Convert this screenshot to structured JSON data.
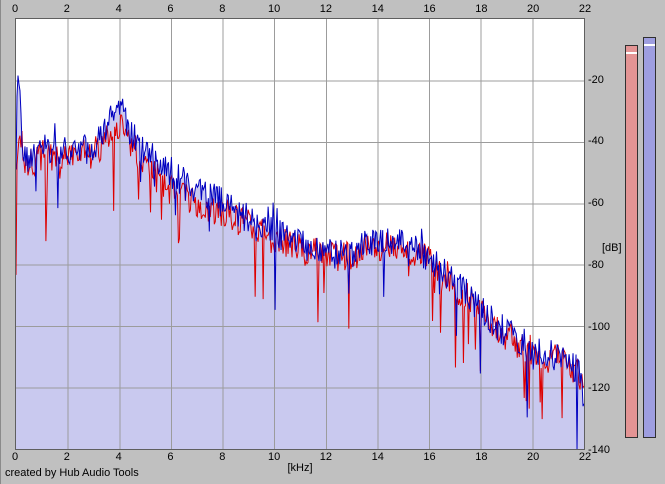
{
  "footer": "created by Hub Audio Tools",
  "meters": {
    "left": {
      "fill": "#e39494",
      "border": "#303030"
    },
    "right": {
      "fill": "#9e9ee0",
      "border": "#303030"
    }
  },
  "chart_data": {
    "type": "line",
    "title": "",
    "xlabel": "[kHz]",
    "ylabel": "[dB]",
    "x_range": [
      0,
      22
    ],
    "y_range": [
      -140,
      0
    ],
    "x_ticks": [
      0,
      2,
      4,
      6,
      8,
      10,
      12,
      14,
      16,
      18,
      20,
      22
    ],
    "y_ticks": [
      -20,
      -40,
      -60,
      -80,
      -100,
      -120,
      -140
    ],
    "grid": true,
    "legend": "none",
    "colors": {
      "plot_background": "#ffffff",
      "window_background": "#c0c0c0",
      "grid": "#9c9c9c",
      "area_fill": "#c9c9ef",
      "red_trace": "#dd0000",
      "blue_trace": "#0000c0"
    },
    "series": [
      {
        "name": "red-trace",
        "color": "#dd0000",
        "fill": null,
        "noise": {
          "seed": 7,
          "jitter": 5,
          "spike_prob": 0.07,
          "spike_depth": 24,
          "up_prob": 0.02,
          "up_amp": 6
        },
        "points": [
          [
            0,
            -55
          ],
          [
            0.1,
            -36
          ],
          [
            0.35,
            -46
          ],
          [
            0.7,
            -47
          ],
          [
            1,
            -44
          ],
          [
            1.4,
            -46
          ],
          [
            1.8,
            -44
          ],
          [
            2.2,
            -46
          ],
          [
            2.6,
            -44
          ],
          [
            3,
            -45
          ],
          [
            3.4,
            -40
          ],
          [
            3.8,
            -35
          ],
          [
            4.1,
            -34
          ],
          [
            4.4,
            -40
          ],
          [
            4.8,
            -45
          ],
          [
            5.2,
            -49
          ],
          [
            5.6,
            -53
          ],
          [
            6,
            -56
          ],
          [
            6.5,
            -58
          ],
          [
            7,
            -60
          ],
          [
            7.5,
            -62
          ],
          [
            8,
            -63
          ],
          [
            8.5,
            -65
          ],
          [
            9,
            -67
          ],
          [
            9.5,
            -70
          ],
          [
            10,
            -72
          ],
          [
            10.5,
            -73
          ],
          [
            11,
            -75
          ],
          [
            11.5,
            -76
          ],
          [
            12,
            -77
          ],
          [
            12.5,
            -78
          ],
          [
            13,
            -77
          ],
          [
            13.5,
            -75
          ],
          [
            14,
            -74
          ],
          [
            14.5,
            -73
          ],
          [
            15,
            -74
          ],
          [
            15.5,
            -76
          ],
          [
            16,
            -79
          ],
          [
            16.5,
            -83
          ],
          [
            17,
            -87
          ],
          [
            17.5,
            -91
          ],
          [
            18,
            -96
          ],
          [
            18.5,
            -100
          ],
          [
            19,
            -103
          ],
          [
            19.5,
            -106
          ],
          [
            20,
            -108
          ],
          [
            20.5,
            -110
          ],
          [
            21,
            -111
          ],
          [
            21.5,
            -113
          ],
          [
            22,
            -117
          ]
        ]
      },
      {
        "name": "blue-trace",
        "color": "#0000c0",
        "fill": "#c9c9ef",
        "noise": {
          "seed": 42,
          "jitter": 5,
          "spike_prob": 0.05,
          "spike_depth": 22,
          "up_prob": 0.02,
          "up_amp": 8
        },
        "points": [
          [
            0,
            -50
          ],
          [
            0.06,
            -14
          ],
          [
            0.3,
            -44
          ],
          [
            0.6,
            -46
          ],
          [
            1,
            -42
          ],
          [
            1.4,
            -44
          ],
          [
            1.8,
            -42
          ],
          [
            2.2,
            -44
          ],
          [
            2.6,
            -42
          ],
          [
            3,
            -43
          ],
          [
            3.4,
            -36
          ],
          [
            3.8,
            -31
          ],
          [
            4.1,
            -30
          ],
          [
            4.4,
            -36
          ],
          [
            4.8,
            -41
          ],
          [
            5.2,
            -44
          ],
          [
            5.6,
            -47
          ],
          [
            6,
            -50
          ],
          [
            6.5,
            -53
          ],
          [
            7,
            -55
          ],
          [
            7.5,
            -57
          ],
          [
            8,
            -60
          ],
          [
            8.5,
            -63
          ],
          [
            9,
            -65
          ],
          [
            9.5,
            -67
          ],
          [
            10,
            -70
          ],
          [
            10.5,
            -71
          ],
          [
            11,
            -73
          ],
          [
            11.5,
            -75
          ],
          [
            12,
            -76
          ],
          [
            12.5,
            -77
          ],
          [
            13,
            -76
          ],
          [
            13.5,
            -74
          ],
          [
            14,
            -73
          ],
          [
            14.5,
            -72
          ],
          [
            15,
            -73
          ],
          [
            15.5,
            -75
          ],
          [
            16,
            -78
          ],
          [
            16.5,
            -82
          ],
          [
            17,
            -86
          ],
          [
            17.5,
            -90
          ],
          [
            18,
            -95
          ],
          [
            18.5,
            -99
          ],
          [
            19,
            -102
          ],
          [
            19.5,
            -105
          ],
          [
            20,
            -107
          ],
          [
            20.5,
            -109
          ],
          [
            21,
            -110
          ],
          [
            21.5,
            -112
          ],
          [
            21.9,
            -116
          ],
          [
            22,
            -127
          ]
        ]
      }
    ]
  }
}
